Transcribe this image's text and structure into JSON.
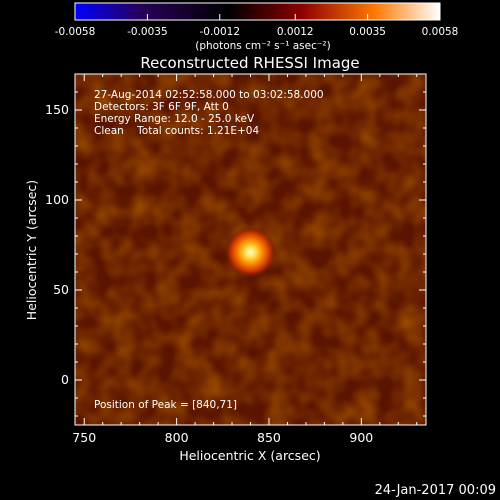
{
  "chart_data": {
    "type": "heatmap",
    "title": "Reconstructed RHESSI Image",
    "xlabel": "Heliocentric X (arcsec)",
    "ylabel": "Heliocentric Y (arcsec)",
    "xlim": [
      745,
      935
    ],
    "ylim": [
      -25,
      170
    ],
    "x_ticks": [
      750,
      800,
      850,
      900
    ],
    "y_ticks": [
      0,
      50,
      100,
      150
    ],
    "colorbar": {
      "ticks": [
        "-0.0058",
        "-0.0035",
        "-0.0012",
        "0.0012",
        "0.0035",
        "0.0058"
      ],
      "range": [
        -0.0058,
        0.0058
      ],
      "unit_label": "(photons cm⁻² s⁻¹ asec⁻²)",
      "colors": [
        "#0000ff",
        "#28005a",
        "#000000",
        "#8c0000",
        "#ff7800",
        "#ffffff"
      ]
    },
    "background_color": "#5a1400",
    "annotations": {
      "time": "27-Aug-2014 02:52:58.000 to 03:02:58.000",
      "detectors": "Detectors: 3F 6F 9F, Att 0",
      "energy": "Energy Range: 12.0 - 25.0 keV",
      "method": "Clean    Total counts: 1.21E+04",
      "peak": "Position of Peak = [840,71]"
    },
    "peak": {
      "x": 840,
      "y": 71,
      "peak_value": 0.0058
    }
  },
  "footer": {
    "date": "24-Jan-2017 00:09"
  }
}
